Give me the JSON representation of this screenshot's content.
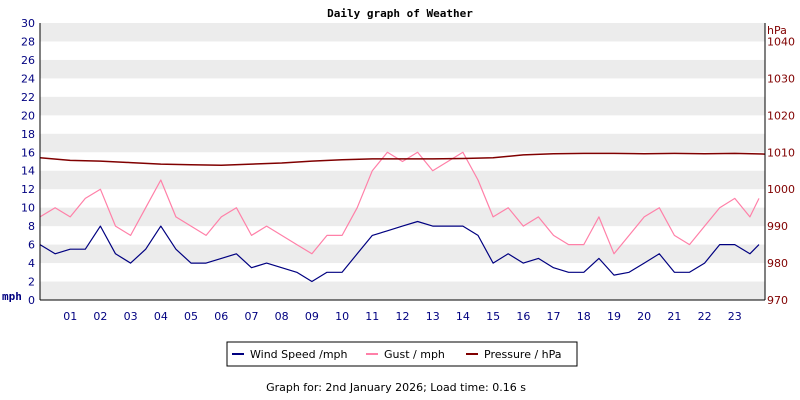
{
  "chart_data": {
    "type": "line",
    "title": "Daily graph of Weather",
    "left_axis": {
      "unit_label": "mph",
      "ylim": [
        0,
        30
      ],
      "ticks": [
        "0",
        "2",
        "4",
        "6",
        "8",
        "10",
        "12",
        "14",
        "16",
        "18",
        "20",
        "22",
        "24",
        "26",
        "28",
        "30"
      ]
    },
    "right_axis": {
      "unit_label": "hPa",
      "ylim": [
        970,
        1045
      ],
      "ticks": [
        "970",
        "980",
        "990",
        "1000",
        "1010",
        "1020",
        "1030",
        "1040"
      ]
    },
    "x_ticks": [
      "01",
      "02",
      "03",
      "04",
      "05",
      "06",
      "07",
      "08",
      "09",
      "10",
      "11",
      "12",
      "13",
      "14",
      "15",
      "16",
      "17",
      "18",
      "19",
      "20",
      "21",
      "22",
      "23"
    ],
    "xlim": [
      0,
      24
    ],
    "grid": "horizontal alternating bands",
    "legend_position": "bottom-center",
    "series": [
      {
        "name": "Wind Speed /mph",
        "color": "#000080",
        "axis": "left",
        "x": [
          0,
          0.5,
          1,
          1.5,
          2,
          2.5,
          3,
          3.5,
          4,
          4.5,
          5,
          5.5,
          6,
          6.5,
          7,
          7.5,
          8,
          8.5,
          9,
          9.5,
          10,
          10.5,
          11,
          11.5,
          12,
          12.5,
          13,
          13.5,
          14,
          14.5,
          15,
          15.5,
          16,
          16.5,
          17,
          17.5,
          18,
          18.5,
          19,
          19.5,
          20,
          20.5,
          21,
          21.5,
          22,
          22.5,
          23,
          23.5,
          23.8
        ],
        "values": [
          6,
          5,
          5.5,
          5.5,
          8,
          5,
          4,
          5.5,
          8,
          5.5,
          4,
          4,
          4.5,
          5,
          3.5,
          4,
          3.5,
          3,
          2,
          3,
          3,
          5,
          7,
          7.5,
          8,
          8.5,
          8,
          8,
          8,
          7,
          4,
          5,
          4,
          4.5,
          3.5,
          3,
          3,
          4.5,
          2.7,
          3,
          4,
          5,
          3,
          3,
          4,
          6,
          6,
          5,
          6
        ]
      },
      {
        "name": "Gust / mph",
        "color": "#ff80a8",
        "axis": "left",
        "x": [
          0,
          0.5,
          1,
          1.5,
          2,
          2.5,
          3,
          3.5,
          4,
          4.5,
          5,
          5.5,
          6,
          6.5,
          7,
          7.5,
          8,
          8.5,
          9,
          9.5,
          10,
          10.5,
          11,
          11.5,
          12,
          12.5,
          13,
          13.5,
          14,
          14.5,
          15,
          15.5,
          16,
          16.5,
          17,
          17.5,
          18,
          18.5,
          19,
          19.5,
          20,
          20.5,
          21,
          21.5,
          22,
          22.5,
          23,
          23.5,
          23.8
        ],
        "values": [
          9,
          10,
          9,
          11,
          12,
          8,
          7,
          10,
          13,
          9,
          8,
          7,
          9,
          10,
          7,
          8,
          7,
          6,
          5,
          7,
          7,
          10,
          14,
          16,
          15,
          16,
          14,
          15,
          16,
          13,
          9,
          10,
          8,
          9,
          7,
          6,
          6,
          9,
          5,
          7,
          9,
          10,
          7,
          6,
          8,
          10,
          11,
          9,
          11
        ]
      },
      {
        "name": "Pressure / hPa",
        "color": "#800000",
        "axis": "right",
        "x": [
          0,
          1,
          2,
          3,
          4,
          5,
          6,
          7,
          8,
          9,
          10,
          11,
          12,
          13,
          14,
          15,
          16,
          17,
          18,
          19,
          20,
          21,
          22,
          23,
          24
        ],
        "values": [
          1008.5,
          1007.8,
          1007.6,
          1007.2,
          1006.8,
          1006.6,
          1006.5,
          1006.8,
          1007.1,
          1007.6,
          1008.0,
          1008.2,
          1008.2,
          1008.2,
          1008.3,
          1008.5,
          1009.3,
          1009.6,
          1009.7,
          1009.7,
          1009.6,
          1009.7,
          1009.6,
          1009.7,
          1009.5
        ]
      }
    ]
  },
  "footer": "Graph for: 2nd January 2026; Load time: 0.16 s"
}
